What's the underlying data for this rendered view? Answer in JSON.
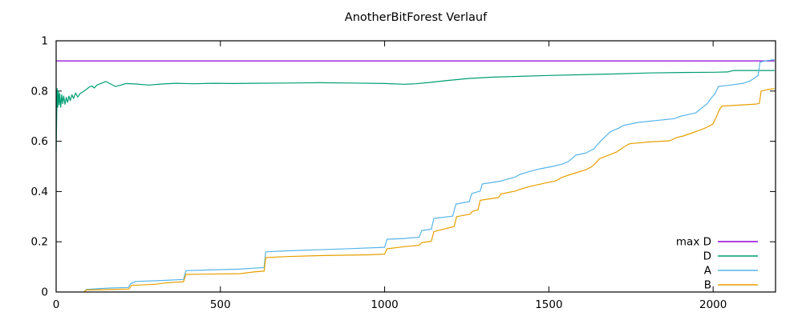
{
  "title": "AnotherBitForest Verlauf",
  "colors": {
    "max_d": "#9400D3",
    "d": "#009E73",
    "a": "#56B4E9",
    "b": "#E69F00",
    "axis": "#000000",
    "background": "#FFFFFF"
  },
  "chart_data": {
    "type": "line",
    "title": "AnotherBitForest Verlauf",
    "xlabel": "",
    "ylabel": "",
    "xlim": [
      0,
      2190
    ],
    "ylim": [
      0,
      1
    ],
    "grid": false,
    "legend_position": "inside-bottom-right",
    "xticks": {
      "values": [
        0,
        500,
        1000,
        1500,
        2000
      ],
      "labels": [
        "0",
        "500",
        "1000",
        "1500",
        "2000"
      ]
    },
    "yticks": {
      "values": [
        0,
        0.2,
        0.4,
        0.6,
        0.8,
        1
      ],
      "labels": [
        "0",
        "0.2",
        "0.4",
        "0.6",
        "0.8",
        "1"
      ]
    },
    "series": [
      {
        "name": "max D",
        "color": "#9400D3",
        "points": [
          [
            0,
            0.92
          ],
          [
            2187,
            0.92
          ]
        ]
      },
      {
        "name": "D",
        "color": "#009E73",
        "points": [
          [
            0,
            0.56
          ],
          [
            3,
            0.81
          ],
          [
            5,
            0.735
          ],
          [
            7,
            0.8
          ],
          [
            9,
            0.745
          ],
          [
            11,
            0.79
          ],
          [
            14,
            0.735
          ],
          [
            17,
            0.785
          ],
          [
            20,
            0.75
          ],
          [
            23,
            0.78
          ],
          [
            27,
            0.747
          ],
          [
            31,
            0.775
          ],
          [
            35,
            0.755
          ],
          [
            39,
            0.78
          ],
          [
            43,
            0.762
          ],
          [
            48,
            0.785
          ],
          [
            53,
            0.77
          ],
          [
            59,
            0.792
          ],
          [
            66,
            0.776
          ],
          [
            73,
            0.79
          ],
          [
            82,
            0.797
          ],
          [
            92,
            0.807
          ],
          [
            101,
            0.816
          ],
          [
            109,
            0.82
          ],
          [
            116,
            0.812
          ],
          [
            124,
            0.824
          ],
          [
            136,
            0.83
          ],
          [
            151,
            0.838
          ],
          [
            166,
            0.828
          ],
          [
            181,
            0.818
          ],
          [
            196,
            0.823
          ],
          [
            212,
            0.83
          ],
          [
            242,
            0.828
          ],
          [
            282,
            0.824
          ],
          [
            322,
            0.828
          ],
          [
            365,
            0.831
          ],
          [
            420,
            0.829
          ],
          [
            480,
            0.831
          ],
          [
            540,
            0.83
          ],
          [
            600,
            0.831
          ],
          [
            700,
            0.832
          ],
          [
            800,
            0.833
          ],
          [
            900,
            0.832
          ],
          [
            1000,
            0.83
          ],
          [
            1060,
            0.827
          ],
          [
            1095,
            0.829
          ],
          [
            1135,
            0.834
          ],
          [
            1185,
            0.841
          ],
          [
            1255,
            0.85
          ],
          [
            1325,
            0.855
          ],
          [
            1395,
            0.858
          ],
          [
            1500,
            0.862
          ],
          [
            1600,
            0.865
          ],
          [
            1705,
            0.868
          ],
          [
            1805,
            0.872
          ],
          [
            1905,
            0.874
          ],
          [
            2005,
            0.875
          ],
          [
            2045,
            0.876
          ],
          [
            2062,
            0.882
          ],
          [
            2187,
            0.882
          ]
        ]
      },
      {
        "name": "A",
        "color": "#56B4E9",
        "points": [
          [
            85,
            0
          ],
          [
            92,
            0.01
          ],
          [
            125,
            0.013
          ],
          [
            165,
            0.016
          ],
          [
            220,
            0.018
          ],
          [
            227,
            0.033
          ],
          [
            243,
            0.042
          ],
          [
            322,
            0.046
          ],
          [
            388,
            0.05
          ],
          [
            395,
            0.085
          ],
          [
            470,
            0.088
          ],
          [
            558,
            0.091
          ],
          [
            602,
            0.095
          ],
          [
            633,
            0.097
          ],
          [
            638,
            0.16
          ],
          [
            702,
            0.164
          ],
          [
            802,
            0.168
          ],
          [
            902,
            0.173
          ],
          [
            1000,
            0.178
          ],
          [
            1007,
            0.21
          ],
          [
            1060,
            0.213
          ],
          [
            1105,
            0.218
          ],
          [
            1113,
            0.245
          ],
          [
            1142,
            0.25
          ],
          [
            1150,
            0.293
          ],
          [
            1207,
            0.302
          ],
          [
            1217,
            0.35
          ],
          [
            1258,
            0.36
          ],
          [
            1265,
            0.392
          ],
          [
            1291,
            0.402
          ],
          [
            1297,
            0.43
          ],
          [
            1352,
            0.441
          ],
          [
            1398,
            0.458
          ],
          [
            1412,
            0.468
          ],
          [
            1442,
            0.48
          ],
          [
            1472,
            0.49
          ],
          [
            1512,
            0.5
          ],
          [
            1542,
            0.51
          ],
          [
            1560,
            0.52
          ],
          [
            1582,
            0.545
          ],
          [
            1612,
            0.553
          ],
          [
            1637,
            0.57
          ],
          [
            1657,
            0.6
          ],
          [
            1687,
            0.638
          ],
          [
            1712,
            0.652
          ],
          [
            1727,
            0.663
          ],
          [
            1772,
            0.675
          ],
          [
            1882,
            0.69
          ],
          [
            1902,
            0.7
          ],
          [
            1947,
            0.713
          ],
          [
            1963,
            0.73
          ],
          [
            1982,
            0.75
          ],
          [
            1993,
            0.77
          ],
          [
            2006,
            0.79
          ],
          [
            2016,
            0.818
          ],
          [
            2052,
            0.824
          ],
          [
            2092,
            0.831
          ],
          [
            2112,
            0.84
          ],
          [
            2124,
            0.85
          ],
          [
            2137,
            0.862
          ],
          [
            2143,
            0.915
          ],
          [
            2162,
            0.921
          ],
          [
            2187,
            0.925
          ]
        ]
      },
      {
        "name": "B",
        "color": "#E69F00",
        "points": [
          [
            85,
            0
          ],
          [
            92,
            0.008
          ],
          [
            165,
            0.01
          ],
          [
            222,
            0.012
          ],
          [
            229,
            0.026
          ],
          [
            302,
            0.031
          ],
          [
            332,
            0.036
          ],
          [
            388,
            0.041
          ],
          [
            395,
            0.07
          ],
          [
            560,
            0.073
          ],
          [
            602,
            0.08
          ],
          [
            633,
            0.083
          ],
          [
            638,
            0.137
          ],
          [
            702,
            0.141
          ],
          [
            802,
            0.145
          ],
          [
            952,
            0.148
          ],
          [
            1000,
            0.151
          ],
          [
            1007,
            0.172
          ],
          [
            1062,
            0.181
          ],
          [
            1105,
            0.186
          ],
          [
            1114,
            0.197
          ],
          [
            1142,
            0.202
          ],
          [
            1150,
            0.24
          ],
          [
            1182,
            0.251
          ],
          [
            1212,
            0.261
          ],
          [
            1219,
            0.3
          ],
          [
            1260,
            0.31
          ],
          [
            1267,
            0.321
          ],
          [
            1284,
            0.326
          ],
          [
            1291,
            0.365
          ],
          [
            1347,
            0.376
          ],
          [
            1354,
            0.39
          ],
          [
            1398,
            0.402
          ],
          [
            1410,
            0.408
          ],
          [
            1442,
            0.42
          ],
          [
            1482,
            0.432
          ],
          [
            1522,
            0.443
          ],
          [
            1539,
            0.456
          ],
          [
            1567,
            0.468
          ],
          [
            1613,
            0.487
          ],
          [
            1632,
            0.5
          ],
          [
            1647,
            0.52
          ],
          [
            1654,
            0.531
          ],
          [
            1692,
            0.55
          ],
          [
            1707,
            0.558
          ],
          [
            1729,
            0.578
          ],
          [
            1746,
            0.59
          ],
          [
            1802,
            0.597
          ],
          [
            1868,
            0.602
          ],
          [
            1889,
            0.615
          ],
          [
            1909,
            0.621
          ],
          [
            1951,
            0.64
          ],
          [
            1973,
            0.651
          ],
          [
            1999,
            0.668
          ],
          [
            2011,
            0.7
          ],
          [
            2019,
            0.726
          ],
          [
            2027,
            0.74
          ],
          [
            2131,
            0.748
          ],
          [
            2141,
            0.751
          ],
          [
            2146,
            0.8
          ],
          [
            2166,
            0.806
          ],
          [
            2187,
            0.81
          ]
        ]
      }
    ],
    "legend": {
      "entries": [
        "max D",
        "D",
        "A",
        "B"
      ]
    }
  }
}
